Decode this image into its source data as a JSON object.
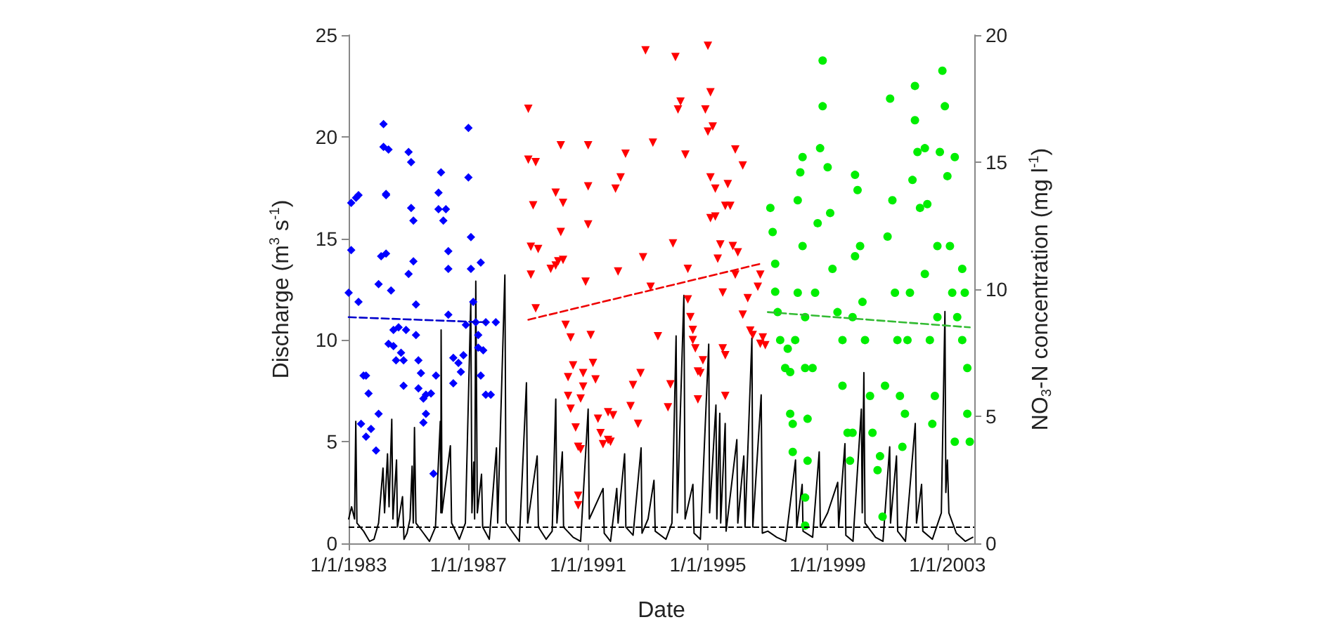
{
  "chart_data": {
    "type": "scatter",
    "xlabel": "Date",
    "ylabel": "Discharge (m$^{3}$ s$^{-1}$)",
    "y2label": "NO$_{3}$-N concentration (mg l$^{-1}$)",
    "xlim": [
      "1983-01-01",
      "2003-11-25"
    ],
    "xticks": [
      {
        "value": "1983-01-01",
        "label": "1/1/1983"
      },
      {
        "value": "1987-01-01",
        "label": "1/1/1987"
      },
      {
        "value": "1991-01-01",
        "label": "1/1/1991"
      },
      {
        "value": "1995-01-01",
        "label": "1/1/1995"
      },
      {
        "value": "1999-01-01",
        "label": "1/1/1999"
      },
      {
        "value": "2003-01-01",
        "label": "1/1/2003"
      }
    ],
    "ylim": [
      0,
      25
    ],
    "yticks": [
      0,
      5,
      10,
      15,
      20,
      25
    ],
    "y2lim": [
      0,
      20
    ],
    "y2ticks": [
      0,
      5,
      10,
      15,
      20
    ],
    "grid": false,
    "ref_lines": [
      {
        "axis": "y",
        "value": 0.8,
        "color": "#000000",
        "line_style": "dashed"
      }
    ],
    "series": [
      {
        "type": "line",
        "color": "#000000",
        "marker": "none",
        "line_style": "solid",
        "x": [
          "1983-01-01",
          "1983-02-06",
          "1983-03-14",
          "1983-03-29",
          "1983-04-12",
          "1983-07-02",
          "1983-09-13",
          "1983-11-06",
          "1984-01-01",
          "1984-02-24",
          "1984-03-14",
          "1984-04-19",
          "1984-05-08",
          "1984-06-10",
          "1984-06-24",
          "1984-08-07",
          "1984-08-18",
          "1984-10-19",
          "1984-11-06",
          "1984-12-13",
          "1985-01-19",
          "1985-02-13",
          "1985-02-27",
          "1985-03-14",
          "1985-04-01",
          "1985-07-02",
          "1985-09-13",
          "1985-11-25",
          "1986-01-23",
          "1986-01-30",
          "1986-02-02",
          "1986-02-13",
          "1986-05-26",
          "1986-06-10",
          "1986-09-13",
          "1986-11-25",
          "1987-01-30",
          "1987-02-13",
          "1987-03-07",
          "1987-03-18",
          "1987-04-01",
          "1987-04-20",
          "1987-06-10",
          "1987-06-24",
          "1987-09-13",
          "1987-12-09",
          "1987-12-24",
          "1988-03-21",
          "1988-04-05",
          "1988-07-02",
          "1988-09-13",
          "1988-12-09",
          "1988-12-24",
          "1989-04-19",
          "1989-05-04",
          "1989-08-07",
          "1989-10-19",
          "1989-12-02",
          "1989-12-16",
          "1990-02-20",
          "1990-03-07",
          "1990-07-02",
          "1990-10-01",
          "1991-01-01",
          "1991-01-15",
          "1991-07-02",
          "1991-07-16",
          "1991-10-01",
          "1991-12-16",
          "1992-01-01",
          "1992-03-21",
          "1992-04-05",
          "1992-07-02",
          "1992-10-08",
          "1992-10-19",
          "1993-01-01",
          "1993-03-14",
          "1993-03-29",
          "1993-08-07",
          "1993-10-19",
          "1993-12-09",
          "1993-12-24",
          "1994-03-14",
          "1994-03-29",
          "1994-07-02",
          "1994-07-16",
          "1994-10-01",
          "1995-01-11",
          "1995-01-22",
          "1995-04-09",
          "1995-04-20",
          "1995-05-26",
          "1995-06-06",
          "1995-07-31",
          "1995-08-11",
          "1995-12-20",
          "1996-01-01",
          "1996-03-14",
          "1996-03-29",
          "1996-06-21",
          "1996-07-02",
          "1996-10-12",
          "1996-10-26",
          "1997-01-01",
          "1997-04-20",
          "1997-08-07",
          "1997-12-05",
          "1997-12-20",
          "1998-02-24",
          "1998-03-07",
          "1998-07-02",
          "1998-09-20",
          "1998-10-04",
          "1999-01-01",
          "1999-05-04",
          "1999-05-15",
          "1999-07-31",
          "1999-08-11",
          "1999-11-06",
          "2000-02-16",
          "2000-02-27",
          "2000-03-18",
          "2000-04-01",
          "2000-08-07",
          "2000-11-06",
          "2001-01-27",
          "2001-02-06",
          "2001-04-20",
          "2001-05-04",
          "2001-08-07",
          "2001-12-05",
          "2001-12-20",
          "2002-02-20",
          "2002-03-07",
          "2002-07-02",
          "2002-10-19",
          "2002-12-02",
          "2002-12-13",
          "2003-01-01",
          "2003-01-19",
          "2003-04-20",
          "2003-08-07",
          "2003-11-06"
        ],
        "values": [
          1.2,
          1.8,
          1.2,
          6.0,
          1.0,
          0.6,
          0.1,
          0.2,
          1.0,
          3.7,
          1.5,
          4.4,
          1.8,
          6.1,
          1.2,
          4.1,
          0.8,
          2.3,
          0.2,
          0.5,
          1.2,
          3.8,
          1.0,
          5.7,
          1.0,
          0.5,
          0.1,
          0.8,
          6.0,
          1.5,
          10.5,
          1.5,
          4.8,
          1.0,
          0.2,
          1.0,
          11.9,
          1.5,
          4.0,
          1.2,
          12.9,
          1.5,
          3.4,
          0.8,
          0.2,
          4.7,
          1.0,
          13.2,
          1.0,
          0.5,
          0.1,
          7.9,
          1.0,
          4.3,
          0.8,
          0.2,
          0.6,
          7.1,
          1.0,
          4.5,
          0.8,
          0.3,
          0.1,
          6.6,
          1.2,
          2.7,
          0.5,
          0.1,
          2.7,
          1.0,
          4.4,
          0.8,
          0.4,
          4.7,
          0.5,
          1.2,
          3.1,
          0.6,
          0.2,
          1.0,
          10.2,
          1.5,
          12.2,
          1.2,
          2.9,
          0.5,
          0.2,
          9.8,
          1.5,
          6.8,
          1.2,
          6.4,
          1.0,
          5.9,
          0.6,
          5.1,
          1.0,
          4.3,
          0.8,
          10.1,
          0.8,
          7.3,
          0.5,
          0.6,
          0.3,
          0.1,
          4.1,
          0.8,
          2.9,
          0.6,
          0.3,
          4.5,
          0.8,
          1.5,
          3.0,
          0.8,
          4.9,
          0.4,
          0.1,
          6.6,
          1.5,
          8.4,
          1.0,
          0.3,
          0.1,
          4.75,
          1.0,
          4.3,
          0.6,
          0.1,
          5.9,
          1.0,
          2.9,
          0.6,
          0.2,
          1.5,
          11.4,
          2.5,
          4.1,
          1.5,
          0.5,
          0.1,
          0.3
        ]
      },
      {
        "axis": "y2",
        "color": "#0000ff",
        "marker": "diamond",
        "x": [
          "1983-01",
          "1983-02",
          "1983-02",
          "1983-04",
          "1983-05",
          "1983-05",
          "1983-06",
          "1983-07",
          "1983-08",
          "1983-09",
          "1983-08",
          "1983-10",
          "1983-12",
          "1984-01",
          "1984-01",
          "1984-02",
          "1984-03",
          "1984-03",
          "1984-04",
          "1984-04",
          "1984-04",
          "1984-05",
          "1984-05",
          "1984-06",
          "1984-07",
          "1984-07",
          "1984-08",
          "1984-09",
          "1984-10",
          "1984-11",
          "1984-11",
          "1984-12",
          "1985-01",
          "1985-01",
          "1985-02",
          "1985-02",
          "1985-03",
          "1985-03",
          "1985-04",
          "1985-04",
          "1985-05",
          "1985-05",
          "1985-06",
          "1985-07",
          "1985-07",
          "1985-08",
          "1985-08",
          "1985-10",
          "1985-11",
          "1985-12",
          "1986-01",
          "1986-01",
          "1986-02",
          "1986-03",
          "1986-04",
          "1986-05",
          "1986-05",
          "1986-05",
          "1986-07",
          "1986-07",
          "1986-09",
          "1986-10",
          "1986-11",
          "1986-12",
          "1987-01",
          "1987-01",
          "1987-02",
          "1987-02",
          "1987-03",
          "1987-04",
          "1987-05",
          "1987-05",
          "1987-06",
          "1987-06",
          "1987-07",
          "1987-08",
          "1987-08",
          "1987-10",
          "1987-12"
        ],
        "values": [
          9.86,
          11.54,
          13.4,
          13.6,
          13.7,
          9.5,
          4.7,
          6.6,
          6.6,
          5.9,
          4.2,
          4.5,
          3.65,
          5.1,
          10.2,
          11.3,
          16.5,
          15.6,
          13.75,
          13.7,
          11.4,
          7.85,
          15.5,
          9.95,
          8.4,
          7.76,
          7.2,
          8.5,
          7.5,
          7.2,
          6.2,
          8.4,
          15.4,
          10.6,
          13.2,
          15.0,
          12.7,
          11.1,
          8.2,
          9.4,
          7.2,
          6.1,
          6.7,
          4.75,
          5.7,
          5.85,
          5.1,
          5.9,
          2.74,
          6.6,
          13.15,
          13.8,
          14.6,
          12.7,
          13.15,
          11.5,
          9.0,
          10.8,
          7.3,
          6.3,
          7.1,
          6.75,
          7.4,
          8.6,
          16.35,
          14.4,
          12.05,
          10.8,
          9.5,
          8.7,
          7.7,
          8.2,
          11.05,
          6.6,
          7.6,
          8.7,
          5.85,
          5.85,
          8.7
        ]
      },
      {
        "axis": "y2",
        "color": "#ff0000",
        "marker": "triangle",
        "x": [
          "1989-01",
          "1989-01",
          "1989-02",
          "1989-02",
          "1989-03",
          "1989-04",
          "1989-04",
          "1989-05",
          "1989-10",
          "1989-12",
          "1989-12",
          "1990-01",
          "1990-02",
          "1990-02",
          "1990-03",
          "1990-03",
          "1990-04",
          "1990-05",
          "1990-05",
          "1990-06",
          "1990-06",
          "1990-07",
          "1990-08",
          "1990-09",
          "1990-09",
          "1990-09",
          "1990-10",
          "1990-10",
          "1990-11",
          "1990-11",
          "1990-12",
          "1991-01",
          "1991-01",
          "1991-01",
          "1991-02",
          "1991-03",
          "1991-04",
          "1991-05",
          "1991-06",
          "1991-07",
          "1991-09",
          "1991-09",
          "1991-10",
          "1991-11",
          "1991-12",
          "1992-01",
          "1992-02",
          "1992-04",
          "1992-06",
          "1992-07",
          "1992-09",
          "1992-10",
          "1992-11",
          "1992-12",
          "1993-02",
          "1993-03",
          "1993-05",
          "1993-09",
          "1993-10",
          "1993-11",
          "1993-12",
          "1994-01",
          "1994-02",
          "1994-04",
          "1994-05",
          "1994-05",
          "1994-06",
          "1994-07",
          "1994-07",
          "1994-08",
          "1994-09",
          "1994-09",
          "1994-10",
          "1994-11",
          "1994-12",
          "1995-01",
          "1995-01",
          "1995-02",
          "1995-02",
          "1995-02",
          "1995-03",
          "1995-04",
          "1995-04",
          "1995-05",
          "1995-06",
          "1995-07",
          "1995-07",
          "1995-08",
          "1995-08",
          "1995-08",
          "1995-09",
          "1995-10",
          "1995-11",
          "1995-12",
          "1995-12",
          "1996-01",
          "1996-03",
          "1996-03",
          "1996-05",
          "1996-06",
          "1996-07",
          "1996-09",
          "1996-10",
          "1996-10",
          "1996-11",
          "1996-12"
        ],
        "values": [
          17.1,
          15.1,
          11.67,
          10.57,
          13.3,
          9.25,
          15.0,
          11.58,
          10.8,
          13.8,
          10.93,
          11.1,
          12.25,
          15.66,
          11.15,
          13.4,
          8.6,
          6.54,
          5.8,
          8.1,
          5.3,
          7.0,
          4.56,
          3.8,
          1.87,
          1.5,
          5.7,
          3.7,
          6.17,
          6.7,
          10.3,
          15.66,
          14.05,
          12.55,
          8.2,
          7.1,
          6.45,
          4.9,
          4.34,
          3.9,
          4.07,
          5.16,
          4.0,
          5.04,
          13.96,
          10.7,
          14.4,
          15.33,
          5.4,
          6.23,
          4.7,
          6.7,
          11.26,
          19.4,
          10.1,
          15.77,
          8.15,
          5.35,
          6.26,
          11.8,
          19.14,
          17.07,
          17.38,
          15.3,
          10.8,
          9.6,
          8.9,
          8.4,
          8.0,
          7.67,
          6.76,
          5.66,
          6.7,
          7.2,
          17.07,
          16.2,
          19.58,
          17.75,
          12.8,
          14.4,
          16.4,
          12.86,
          13.96,
          11.2,
          11.76,
          7.67,
          9.87,
          5.8,
          7.4,
          13.28,
          14.14,
          13.28,
          11.7,
          10.57,
          15.5,
          11.45,
          9.0,
          14.87,
          9.65,
          8.37,
          8.2,
          10.1,
          10.57,
          7.85,
          8.1,
          7.8
        ]
      },
      {
        "axis": "y2",
        "color": "#00ee00",
        "marker": "circle",
        "x": [
          "1997-02",
          "1997-03",
          "1997-04",
          "1997-04",
          "1997-05",
          "1997-06",
          "1997-08",
          "1997-09",
          "1997-10",
          "1997-10",
          "1997-11",
          "1997-11",
          "1997-12",
          "1998-01",
          "1998-01",
          "1998-02",
          "1998-03",
          "1998-03",
          "1998-04",
          "1998-04",
          "1998-04",
          "1998-04",
          "1998-05",
          "1998-05",
          "1998-07",
          "1998-08",
          "1998-09",
          "1998-10",
          "1998-11",
          "1998-11",
          "1999-01",
          "1999-02",
          "1999-03",
          "1999-05",
          "1999-07",
          "1999-07",
          "1999-09",
          "1999-10",
          "1999-11",
          "1999-11",
          "1999-12",
          "1999-12",
          "2000-01",
          "2000-02",
          "2000-03",
          "2000-04",
          "2000-06",
          "2000-07",
          "2000-09",
          "2000-10",
          "2000-11",
          "2000-12",
          "2001-01",
          "2001-02",
          "2001-03",
          "2001-04",
          "2001-05",
          "2001-06",
          "2001-07",
          "2001-08",
          "2001-09",
          "2001-10",
          "2001-11",
          "2001-12",
          "2001-12",
          "2002-01",
          "2002-02",
          "2002-04",
          "2002-04",
          "2002-05",
          "2002-06",
          "2002-07",
          "2002-08",
          "2002-09",
          "2002-09",
          "2002-10",
          "2002-11",
          "2002-12",
          "2003-01",
          "2003-02",
          "2003-03",
          "2003-04",
          "2003-04",
          "2003-05",
          "2003-07",
          "2003-07",
          "2003-08",
          "2003-09",
          "2003-09",
          "2003-10"
        ],
        "values": [
          13.2,
          12.25,
          11.0,
          9.9,
          9.1,
          8.0,
          6.9,
          7.66,
          6.74,
          5.1,
          3.6,
          4.7,
          8.0,
          9.86,
          13.5,
          14.6,
          15.2,
          11.7,
          8.9,
          6.9,
          1.8,
          0.7,
          4.9,
          3.25,
          6.9,
          9.86,
          12.6,
          15.55,
          19.0,
          17.2,
          14.8,
          13.0,
          10.8,
          9.1,
          8.0,
          6.2,
          4.35,
          3.25,
          4.35,
          8.9,
          11.3,
          14.5,
          13.9,
          11.7,
          9.5,
          8.0,
          5.8,
          4.35,
          2.88,
          3.43,
          1.05,
          6.2,
          12.07,
          17.5,
          13.5,
          9.86,
          8.0,
          5.8,
          3.8,
          5.1,
          8.0,
          9.86,
          14.3,
          18.0,
          16.65,
          15.4,
          13.2,
          15.55,
          10.6,
          13.35,
          8.0,
          4.7,
          5.8,
          8.9,
          11.7,
          15.4,
          18.6,
          17.2,
          14.45,
          11.7,
          9.86,
          15.2,
          4.0,
          8.9,
          8.0,
          10.8,
          9.86,
          6.9,
          5.1,
          4.0
        ]
      },
      {
        "type": "line",
        "axis": "y2",
        "color": "#0000cc",
        "marker": "none",
        "line_style": "dashed",
        "x": [
          "1983-01-01",
          "1987-08-01"
        ],
        "values": [
          8.9,
          8.7
        ]
      },
      {
        "type": "line",
        "axis": "y2",
        "color": "#ee0000",
        "marker": "none",
        "line_style": "dashed",
        "x": [
          "1989-01-01",
          "1996-10-01"
        ],
        "values": [
          8.8,
          11.0
        ]
      },
      {
        "type": "line",
        "axis": "y2",
        "color": "#33bb33",
        "marker": "none",
        "line_style": "dashed",
        "x": [
          "1997-01-01",
          "2003-10-01"
        ],
        "values": [
          9.1,
          8.5
        ]
      }
    ]
  }
}
